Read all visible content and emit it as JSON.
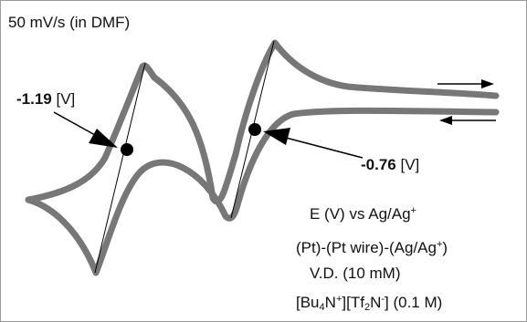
{
  "chart_data": {
    "type": "line",
    "title": "50 mV/s (in DMF)",
    "xlabel": "",
    "ylabel": "",
    "curve_color": "#777777",
    "peak_marker_color": "#000000",
    "annotations": {
      "peak1": {
        "value": "-1.19",
        "unit": "[V]"
      },
      "peak2": {
        "value": "-0.76",
        "unit": "[V]"
      }
    },
    "scan_arrows": [
      {
        "direction": "right"
      },
      {
        "direction": "left"
      }
    ],
    "notes": {
      "reference": {
        "text": "E (V) vs Ag/Ag",
        "sup": "+"
      },
      "cell": {
        "pre": "(Pt)-(Pt wire)-(Ag/Ag",
        "sup": "+",
        "post": ")"
      },
      "analyte": "V.D. (10 mM)",
      "electrolyte": {
        "p1": "[Bu",
        "sub1": "4",
        "p2": "N",
        "sup1": "+",
        "p3": "][Tf",
        "sub2": "2",
        "p4": "N",
        "sup2": "-",
        "p5": "] (0.1 M)"
      }
    }
  }
}
